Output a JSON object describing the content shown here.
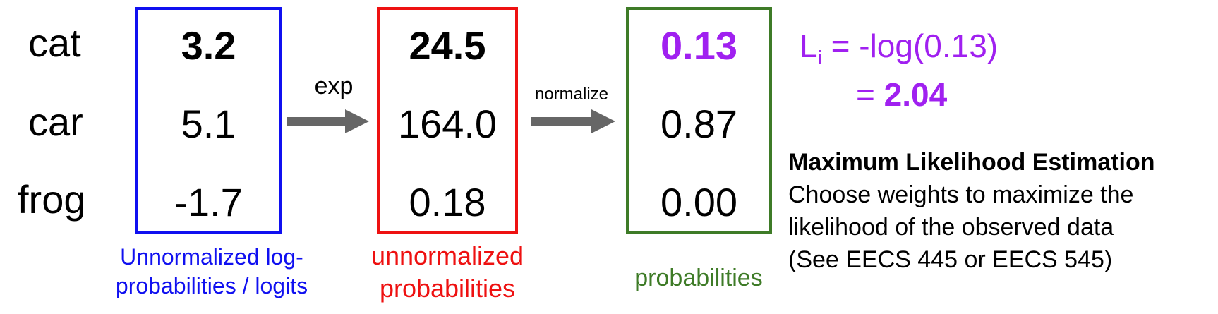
{
  "classes": [
    "cat",
    "car",
    "frog"
  ],
  "logits": {
    "values": [
      "3.2",
      "5.1",
      "-1.7"
    ],
    "caption_line1": "Unnormalized log-",
    "caption_line2": "probabilities / logits",
    "color": "#1010F0"
  },
  "exp_arrow": {
    "label": "exp",
    "color": "#666666"
  },
  "unnormalized": {
    "values": [
      "24.5",
      "164.0",
      "0.18"
    ],
    "caption_line1": "unnormalized",
    "caption_line2": "probabilities",
    "color": "#EE1111"
  },
  "normalize_arrow": {
    "label": "normalize",
    "color": "#666666"
  },
  "probabilities": {
    "values": [
      "0.13",
      "0.87",
      "0.00"
    ],
    "caption": "probabilities",
    "color": "#3E7B27",
    "highlight_color": "#A020F0"
  },
  "loss": {
    "L": "L",
    "subscript": "i",
    "expr": " = -log(0.13)",
    "eq": "= ",
    "result": "2.04",
    "color": "#A020F0"
  },
  "mle": {
    "title": "Maximum Likelihood Estimation",
    "line1": "Choose weights to maximize the",
    "line2": "likelihood of the observed data",
    "line3": "(See EECS 445 or EECS 545)"
  }
}
